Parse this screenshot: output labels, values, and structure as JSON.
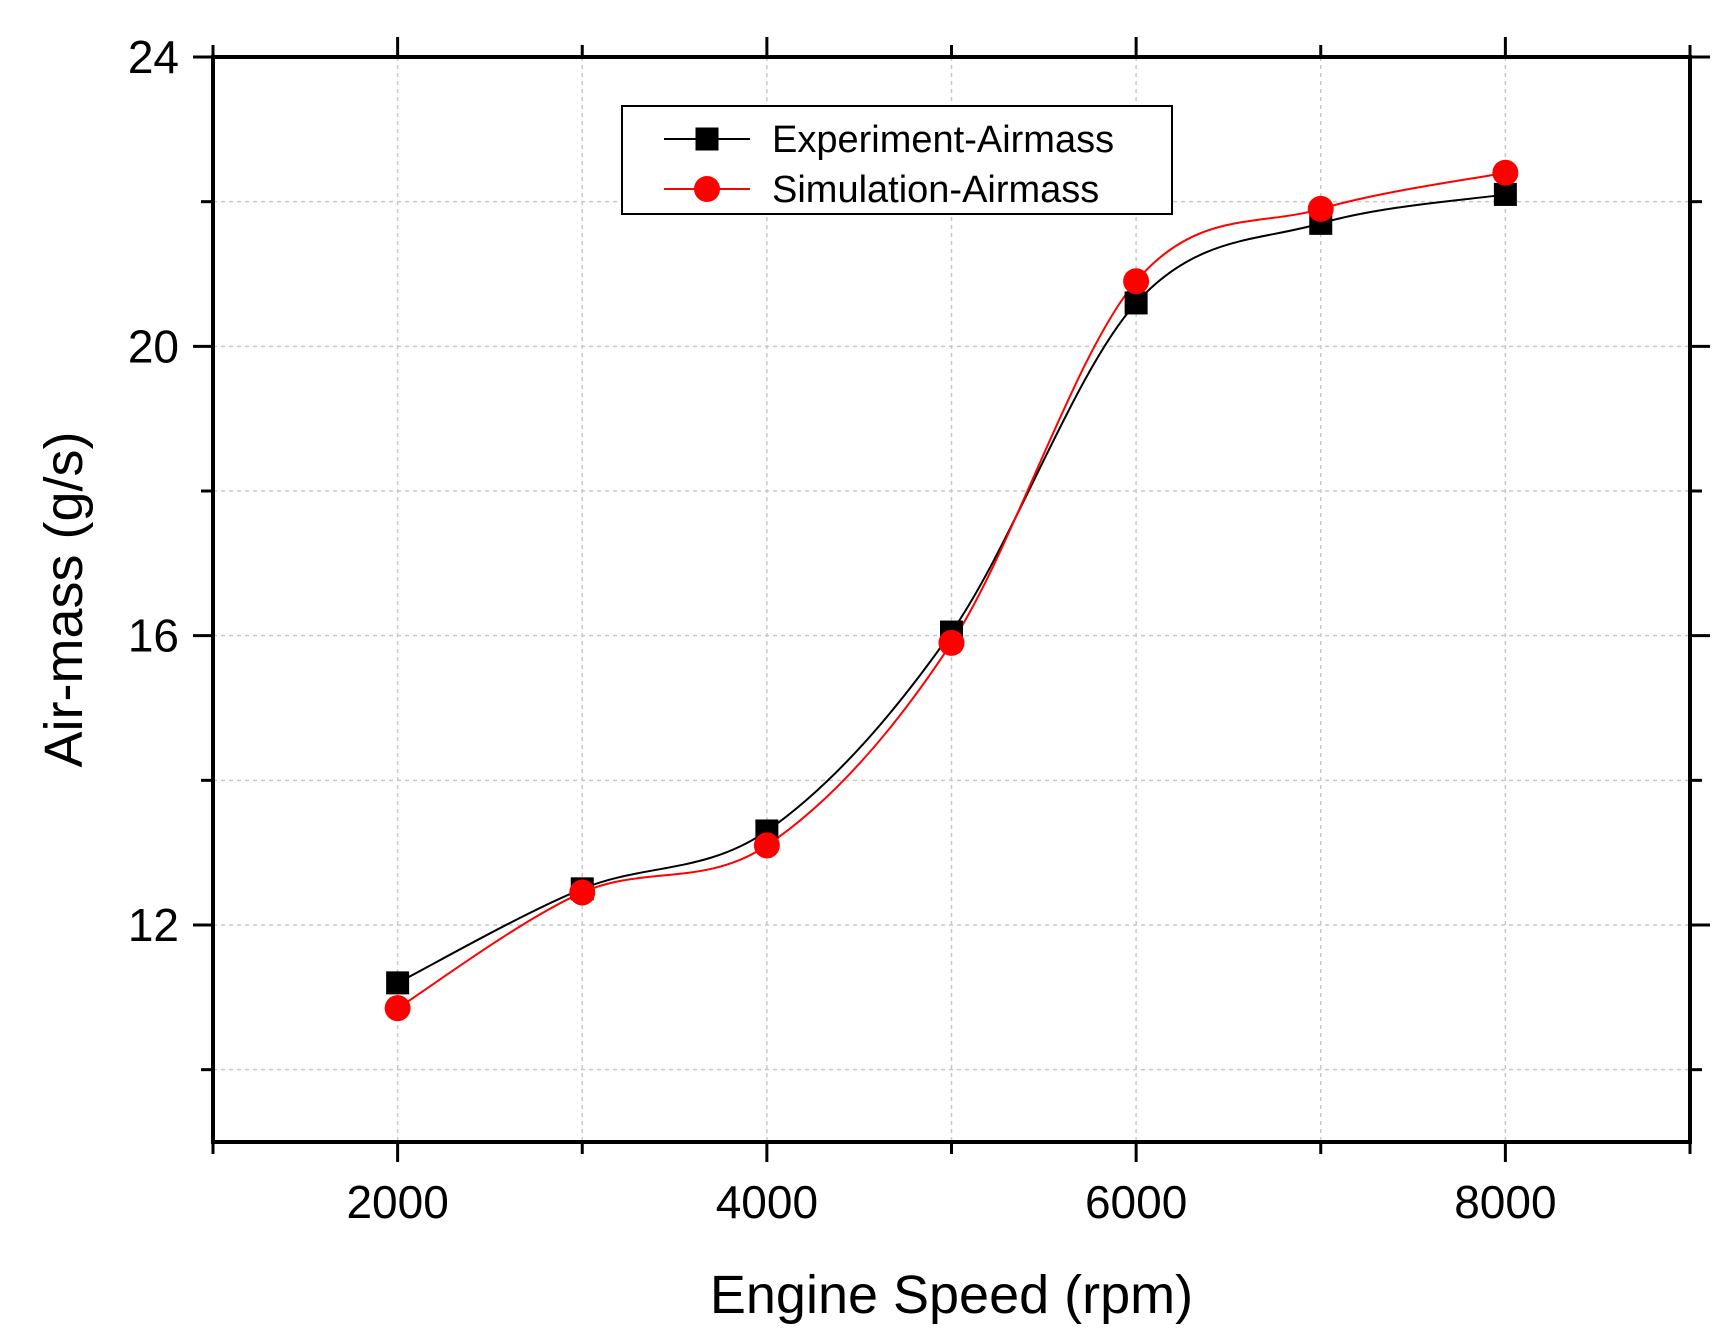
{
  "chart_data": {
    "type": "line",
    "title": "",
    "xlabel": "Engine Speed (rpm)",
    "ylabel": "Air-mass (g/s)",
    "xlim": [
      1000,
      9000
    ],
    "ylim": [
      9,
      24
    ],
    "x_ticks": [
      2000,
      4000,
      6000,
      8000
    ],
    "x_tick_labels": [
      "2000",
      "4000",
      "6000",
      "8000"
    ],
    "x_minor_ticks": [
      1000,
      3000,
      5000,
      7000,
      9000
    ],
    "y_ticks": [
      12,
      16,
      20,
      24
    ],
    "y_tick_labels": [
      "12",
      "16",
      "20",
      "24"
    ],
    "y_minor_ticks": [
      10,
      14,
      18,
      22
    ],
    "grid": true,
    "legend_position": "top-center",
    "series": [
      {
        "name": "Experiment-Airmass",
        "marker": "square",
        "color": "#000000",
        "x": [
          2000,
          3000,
          4000,
          5000,
          6000,
          7000,
          8000
        ],
        "values": [
          11.2,
          12.5,
          13.3,
          16.05,
          20.6,
          21.7,
          22.1
        ]
      },
      {
        "name": "Simulation-Airmass",
        "marker": "circle",
        "color": "#ff0000",
        "x": [
          2000,
          3000,
          4000,
          5000,
          6000,
          7000,
          8000
        ],
        "values": [
          10.85,
          12.45,
          13.1,
          15.9,
          20.9,
          21.9,
          22.4
        ]
      }
    ]
  }
}
